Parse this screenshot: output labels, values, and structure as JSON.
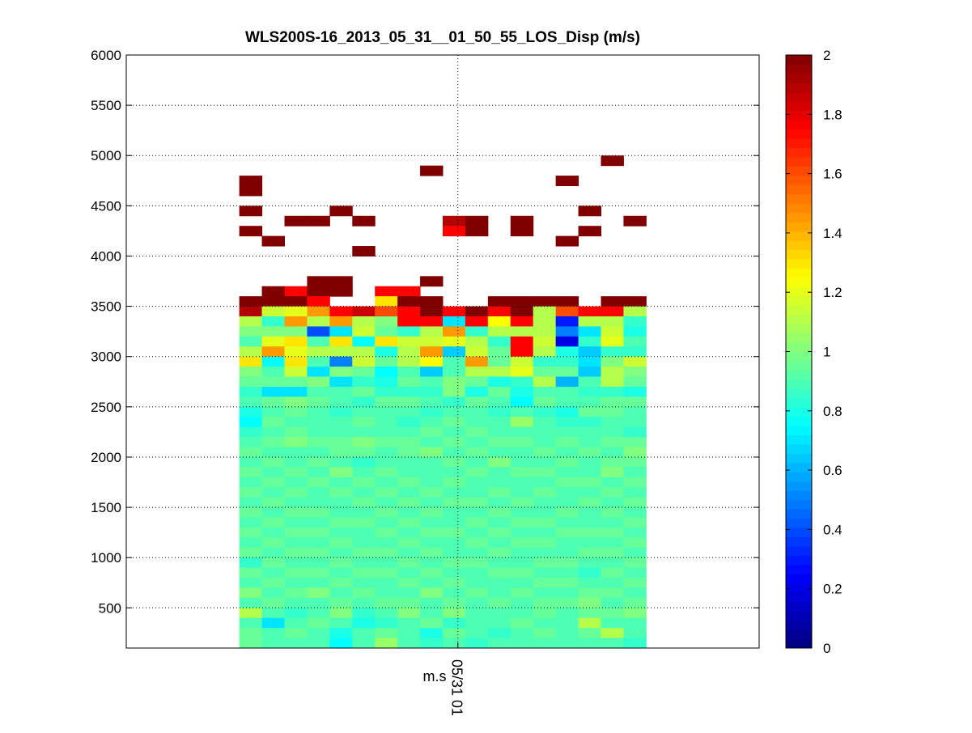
{
  "chart_data": {
    "type": "heatmap",
    "title": "WLS200S-16_2013_05_31__01_50_55_LOS_Disp (m/s)",
    "xlabel": "m.s",
    "ylabel": "",
    "xlim": [
      0,
      28
    ],
    "ylim": [
      100,
      6000
    ],
    "grid": true,
    "x_ticks": [
      {
        "value": 14.67,
        "label": "05/31 01"
      }
    ],
    "y_ticks": [
      500,
      1000,
      1500,
      2000,
      2500,
      3000,
      3500,
      4000,
      4500,
      5000,
      5500,
      6000
    ],
    "colormap": "jet",
    "clim": [
      0,
      2
    ],
    "colorbar_ticks": [
      "0",
      "0.2",
      "0.4",
      "0.6",
      "0.8",
      "1",
      "1.2",
      "1.4",
      "1.6",
      "1.8",
      "2"
    ],
    "column_start": 5,
    "row_height": 100,
    "row_bottoms_top_to_bottom": [
      4900,
      4800,
      4700,
      4600,
      4500,
      4400,
      4300,
      4200,
      4100,
      4000,
      3900,
      3800,
      3700,
      3600,
      3500,
      3400,
      3300,
      3200,
      3100,
      3000,
      2900,
      2800,
      2700,
      2600,
      2500,
      2400,
      2300,
      2200,
      2100,
      2000,
      1900,
      1800,
      1700,
      1600,
      1500,
      1400,
      1300,
      1200,
      1100,
      1000,
      900,
      800,
      700,
      600,
      500,
      400,
      300,
      200,
      100
    ],
    "values": [
      [
        null,
        null,
        null,
        null,
        null,
        null,
        null,
        null,
        null,
        null,
        null,
        null,
        null,
        null,
        null,
        null,
        2,
        null
      ],
      [
        null,
        null,
        null,
        null,
        null,
        null,
        null,
        null,
        2,
        null,
        null,
        null,
        null,
        null,
        null,
        null,
        null,
        null
      ],
      [
        2,
        null,
        null,
        null,
        null,
        null,
        null,
        null,
        null,
        null,
        null,
        null,
        null,
        null,
        2,
        null,
        null,
        null
      ],
      [
        2,
        null,
        null,
        null,
        null,
        null,
        null,
        null,
        null,
        null,
        null,
        null,
        null,
        null,
        null,
        null,
        null,
        null
      ],
      [
        null,
        null,
        null,
        null,
        null,
        null,
        null,
        null,
        null,
        null,
        null,
        null,
        null,
        null,
        null,
        null,
        null,
        null
      ],
      [
        2,
        null,
        null,
        null,
        2,
        null,
        null,
        null,
        null,
        null,
        null,
        null,
        null,
        null,
        null,
        2,
        null,
        null
      ],
      [
        null,
        null,
        2,
        2,
        null,
        2,
        null,
        null,
        null,
        1.9,
        2,
        null,
        2,
        null,
        null,
        null,
        null,
        2
      ],
      [
        2,
        null,
        null,
        null,
        null,
        null,
        null,
        null,
        null,
        1.75,
        2,
        null,
        2,
        null,
        null,
        2,
        null,
        null
      ],
      [
        null,
        2,
        null,
        null,
        null,
        null,
        null,
        null,
        null,
        null,
        null,
        null,
        null,
        null,
        2,
        null,
        null,
        null
      ],
      [
        null,
        null,
        null,
        null,
        null,
        2,
        null,
        null,
        null,
        null,
        null,
        null,
        null,
        null,
        null,
        null,
        null,
        null
      ],
      [
        null,
        null,
        null,
        null,
        null,
        null,
        null,
        null,
        null,
        null,
        null,
        null,
        null,
        null,
        null,
        null,
        null,
        null
      ],
      [
        null,
        null,
        null,
        null,
        null,
        null,
        null,
        null,
        null,
        null,
        null,
        null,
        null,
        null,
        null,
        null,
        null,
        null
      ],
      [
        null,
        null,
        null,
        2,
        2,
        null,
        null,
        null,
        2,
        null,
        null,
        null,
        null,
        null,
        null,
        null,
        null,
        null
      ],
      [
        null,
        2,
        1.75,
        2,
        2,
        null,
        1.75,
        1.75,
        null,
        null,
        null,
        null,
        null,
        null,
        null,
        null,
        null,
        null
      ],
      [
        2,
        2,
        2,
        1.75,
        null,
        null,
        1.3,
        2,
        2,
        null,
        null,
        2,
        2,
        2,
        2,
        null,
        2,
        2
      ],
      [
        1.9,
        1.15,
        1.2,
        1.45,
        1.75,
        1.85,
        1.6,
        1.75,
        2,
        1.75,
        2,
        1.75,
        2,
        1.1,
        1.6,
        1.75,
        1.75,
        1.1
      ],
      [
        1.1,
        0.85,
        1.45,
        1.1,
        1.45,
        1.1,
        1.0,
        1.75,
        1.75,
        0.7,
        1.75,
        1.25,
        1.75,
        1.1,
        0.3,
        1.1,
        1.1,
        0.85
      ],
      [
        1.0,
        1.0,
        1.0,
        0.4,
        0.7,
        1.15,
        0.95,
        0.85,
        1.1,
        1.45,
        0.85,
        1.1,
        1.1,
        1.1,
        0.5,
        0.7,
        1.15,
        0.8
      ],
      [
        0.9,
        1.2,
        1.3,
        0.9,
        1.3,
        0.75,
        1.3,
        1.15,
        1.15,
        1.2,
        1.1,
        0.85,
        1.75,
        1.15,
        0.2,
        0.85,
        1.2,
        0.9
      ],
      [
        1.1,
        1.45,
        1.2,
        1.1,
        1.1,
        1.1,
        0.8,
        1.1,
        1.45,
        0.65,
        1.15,
        0.95,
        1.75,
        1.1,
        0.8,
        0.65,
        0.85,
        0.85
      ],
      [
        1.3,
        0.75,
        1.3,
        0.9,
        0.5,
        1.15,
        0.95,
        1.1,
        1.25,
        0.9,
        1.45,
        0.95,
        1.15,
        0.85,
        0.85,
        0.7,
        1.0,
        1.15
      ],
      [
        1.0,
        0.9,
        1.15,
        0.7,
        1.0,
        0.95,
        0.75,
        0.9,
        0.65,
        0.9,
        1.1,
        1.1,
        1.2,
        0.95,
        0.95,
        0.65,
        1.1,
        1.0
      ],
      [
        0.95,
        0.95,
        0.95,
        1.0,
        0.7,
        0.85,
        0.8,
        0.95,
        0.9,
        1.0,
        0.95,
        0.8,
        0.85,
        1.1,
        0.6,
        0.9,
        1.1,
        0.95
      ],
      [
        0.85,
        0.7,
        0.7,
        0.9,
        0.9,
        0.95,
        0.85,
        0.85,
        0.85,
        1.0,
        0.8,
        0.95,
        0.8,
        0.9,
        0.9,
        0.85,
        0.85,
        0.8
      ],
      [
        0.9,
        0.95,
        1.0,
        0.95,
        0.9,
        0.85,
        0.95,
        0.95,
        0.9,
        0.85,
        0.95,
        0.9,
        0.75,
        0.95,
        0.9,
        0.9,
        0.95,
        0.95
      ],
      [
        0.8,
        0.9,
        0.95,
        0.9,
        0.85,
        0.9,
        0.9,
        0.9,
        0.85,
        0.9,
        0.9,
        0.85,
        0.9,
        0.85,
        0.8,
        0.95,
        0.95,
        0.9
      ],
      [
        0.75,
        0.95,
        0.9,
        0.9,
        0.9,
        0.95,
        0.9,
        0.85,
        0.9,
        0.95,
        0.9,
        0.9,
        1.05,
        0.9,
        0.85,
        0.85,
        0.9,
        0.9
      ],
      [
        0.85,
        0.9,
        0.95,
        0.9,
        0.9,
        0.9,
        0.9,
        0.9,
        0.95,
        0.9,
        0.95,
        0.9,
        0.9,
        0.9,
        0.9,
        0.9,
        0.9,
        0.85
      ],
      [
        0.9,
        0.95,
        1.0,
        0.95,
        0.95,
        1.0,
        0.95,
        0.95,
        0.9,
        0.95,
        0.9,
        0.95,
        0.95,
        0.9,
        0.95,
        0.9,
        0.95,
        0.95
      ],
      [
        0.95,
        0.9,
        0.9,
        0.9,
        0.95,
        0.95,
        0.9,
        0.95,
        1.0,
        0.9,
        0.95,
        0.9,
        0.9,
        0.95,
        0.9,
        0.95,
        0.9,
        1.0
      ],
      [
        0.9,
        0.95,
        0.9,
        0.95,
        0.9,
        0.85,
        0.9,
        0.9,
        0.9,
        0.95,
        0.9,
        1.0,
        0.9,
        0.9,
        0.95,
        0.9,
        0.95,
        0.95
      ],
      [
        0.95,
        0.9,
        0.95,
        0.9,
        1.0,
        0.9,
        0.95,
        0.9,
        0.9,
        0.9,
        0.95,
        0.9,
        0.95,
        0.95,
        0.9,
        0.9,
        1.0,
        0.9
      ],
      [
        0.9,
        0.95,
        0.9,
        0.95,
        0.9,
        0.95,
        0.9,
        0.95,
        0.9,
        0.95,
        0.9,
        0.9,
        0.9,
        0.9,
        0.95,
        0.95,
        0.9,
        0.95
      ],
      [
        0.95,
        0.9,
        0.95,
        0.9,
        0.95,
        0.9,
        0.95,
        0.9,
        0.95,
        0.9,
        0.9,
        0.95,
        0.9,
        0.95,
        0.9,
        0.9,
        0.95,
        0.9
      ],
      [
        0.9,
        0.95,
        0.9,
        0.9,
        0.9,
        0.95,
        0.9,
        0.95,
        0.9,
        0.95,
        0.95,
        0.9,
        0.95,
        0.9,
        0.9,
        0.95,
        0.9,
        0.95
      ],
      [
        0.95,
        0.9,
        0.95,
        0.95,
        0.9,
        0.9,
        0.95,
        0.9,
        0.95,
        0.9,
        0.9,
        0.95,
        0.9,
        0.9,
        0.95,
        0.9,
        0.95,
        0.9
      ],
      [
        0.9,
        0.95,
        0.9,
        0.9,
        0.95,
        0.95,
        0.9,
        0.95,
        0.9,
        0.9,
        0.95,
        0.9,
        0.95,
        0.95,
        0.9,
        0.9,
        0.9,
        0.95
      ],
      [
        0.95,
        0.9,
        0.95,
        0.95,
        0.9,
        0.9,
        0.95,
        0.9,
        0.95,
        0.95,
        0.9,
        0.95,
        0.9,
        0.9,
        0.95,
        0.95,
        0.95,
        0.9
      ],
      [
        0.9,
        0.95,
        0.9,
        0.9,
        0.95,
        0.9,
        0.9,
        0.95,
        0.9,
        0.9,
        0.95,
        0.9,
        0.95,
        0.95,
        0.9,
        0.9,
        0.9,
        0.95
      ],
      [
        0.95,
        0.9,
        0.95,
        0.95,
        0.9,
        0.95,
        0.95,
        0.9,
        0.95,
        0.9,
        0.9,
        0.95,
        0.9,
        0.9,
        0.9,
        0.95,
        0.95,
        0.9
      ],
      [
        0.85,
        0.95,
        0.9,
        0.9,
        0.95,
        0.9,
        0.9,
        0.95,
        0.9,
        0.95,
        0.95,
        0.9,
        0.9,
        0.95,
        0.95,
        0.9,
        0.9,
        0.95
      ],
      [
        0.95,
        0.9,
        0.95,
        0.95,
        0.9,
        0.95,
        0.95,
        0.9,
        0.95,
        0.9,
        0.9,
        0.95,
        0.95,
        0.9,
        0.9,
        0.85,
        0.95,
        0.9
      ],
      [
        0.9,
        0.95,
        0.9,
        0.9,
        0.95,
        0.9,
        0.9,
        0.95,
        0.9,
        0.95,
        0.9,
        0.9,
        0.9,
        0.95,
        0.95,
        0.9,
        0.9,
        0.95
      ],
      [
        1.0,
        0.9,
        0.95,
        1.0,
        0.9,
        0.95,
        0.9,
        0.9,
        1.0,
        0.9,
        0.95,
        0.9,
        0.95,
        0.9,
        0.9,
        0.95,
        0.95,
        0.9
      ],
      [
        0.9,
        0.95,
        0.9,
        0.9,
        0.95,
        0.9,
        0.95,
        0.95,
        0.9,
        0.95,
        0.9,
        0.95,
        0.9,
        0.95,
        0.95,
        1.0,
        0.9,
        0.95
      ],
      [
        1.1,
        0.9,
        0.85,
        0.9,
        1.0,
        0.85,
        0.9,
        1.0,
        0.9,
        1.0,
        0.9,
        0.9,
        0.9,
        0.95,
        0.9,
        0.95,
        0.95,
        1.0
      ],
      [
        0.9,
        0.7,
        0.9,
        0.95,
        0.9,
        0.8,
        0.85,
        0.9,
        0.95,
        0.85,
        0.9,
        0.9,
        0.95,
        0.9,
        0.9,
        1.1,
        0.9,
        0.9
      ],
      [
        0.95,
        0.9,
        0.95,
        0.9,
        0.8,
        0.9,
        0.95,
        0.9,
        0.8,
        0.95,
        0.9,
        0.85,
        0.9,
        0.95,
        0.9,
        0.95,
        1.1,
        0.9
      ],
      [
        0.95,
        0.9,
        0.9,
        0.9,
        0.75,
        0.9,
        1.05,
        0.9,
        0.85,
        0.9,
        0.85,
        0.9,
        0.9,
        0.9,
        0.9,
        0.9,
        0.9,
        0.85
      ]
    ]
  }
}
